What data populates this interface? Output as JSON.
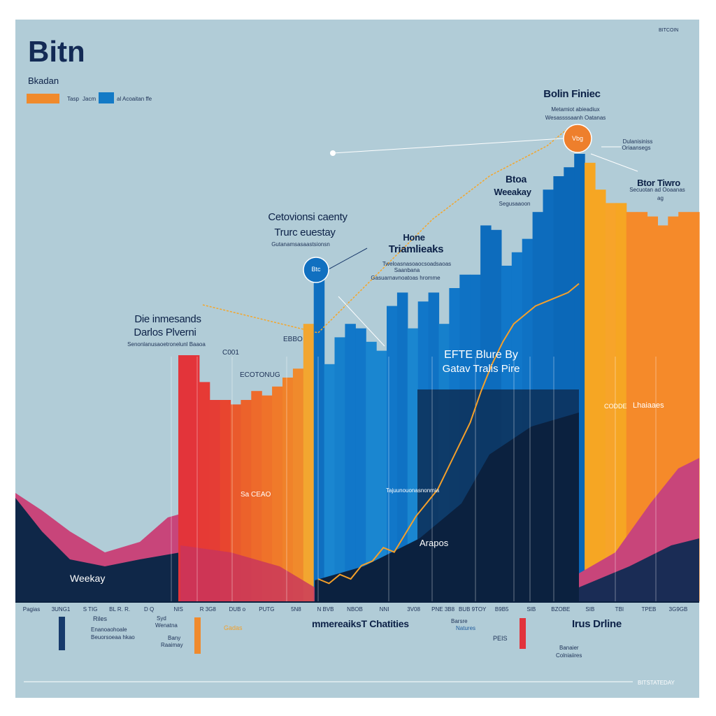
{
  "header": {
    "title": "Bitn",
    "subtitle": "Bkadan",
    "corner_text": "BITCOIN",
    "footer_text": "BITSTATEDAY"
  },
  "legend": [
    {
      "label": "Tasp",
      "label2": "Jacm",
      "color": "#f08a2c"
    },
    {
      "label": "al Acoaitan ffe",
      "color": "#137ac6"
    }
  ],
  "annotations": {
    "peak_title": "Bolin Finiec",
    "peak_sub1": "Metamiot abieadiux",
    "peak_sub2": "Wesassssaanh Oatanas",
    "peak_marker": "Vbg",
    "peak_side1": "Dulanisiniss",
    "peak_side2": "Oriaansegs",
    "btc_marker": "Btc",
    "left_title1": "Cetovionsi caenty",
    "left_title2": "Trurc euestay",
    "left_sub": "Gutanamsasaastsionsn",
    "mid_title1": "Hone",
    "mid_title2": "Triamlieaks",
    "mid_sub1": "Tweloasnasoaocsoadsaoas",
    "mid_sub2": "Saanbana",
    "mid_sub3": "Gasuarnavnoatoas hromme",
    "weekly_title1": "Btoa",
    "weekly_title2": "Weeakay",
    "weekly_sub": "Segusaaoon",
    "right_title": "Btor Tiwro",
    "right_sub": "Secuotan ad Ooaanas",
    "right_tag": "ag",
    "diff_title1": "Die inmesands",
    "diff_title2": "Darlos Plverni",
    "diff_sub": "Senonlanusaoetronelunl Baaoa",
    "label_c001": "C001",
    "label_eb": "EBBO",
    "label_econ": "ECOTONUG",
    "blue_title1": "EFTE Blure By",
    "blue_title2": "Gatav Tralis Pire",
    "orange_label": "Sa CEAO",
    "dark_label": "Tajuunouonasnonmia",
    "apos_label": "Arapos",
    "weekly_bottom": "Weekay",
    "line_end1": "CODDE",
    "line_end2": "Lhaiaaes"
  },
  "bottom": {
    "ticks": [
      "Pagias",
      "3UNG1",
      "S TIG",
      "BL R. R.",
      "D Q",
      "NIS",
      "R 3G8",
      "DUB o",
      "PUTG",
      "5N8",
      "N BVB",
      "NBOB",
      "NNI",
      "3V08",
      "PNE 3B8",
      "BUB 9TOY",
      "B9B5",
      "SIB",
      "BZOBE",
      "SIB",
      "TBI",
      "TPEB",
      "3G9GB"
    ],
    "title": "mmereaiksT Chatities",
    "right_title": "Irus Drline",
    "notes": [
      "Riles",
      "Enanoaohoale",
      "Beuorsoeaa hkao",
      "Syd",
      "Wenatna",
      "Bany",
      "Raaimay",
      "Gadas",
      "Barsre",
      "Natures",
      "PEIS",
      "Banaier",
      "Colniaiires"
    ],
    "tag_colors": [
      "#173a6b",
      "#f08a2c",
      "#e2333b"
    ]
  },
  "chart_data": {
    "type": "bar",
    "title": "Bitn",
    "xlabel": "mmereaiksT Chatities",
    "ylabel": "",
    "ylim": [
      0,
      100
    ],
    "grid": false,
    "legend_position": "top-left",
    "values": [
      55,
      55,
      49,
      45,
      45,
      44,
      45,
      47,
      46,
      48,
      50,
      52,
      62,
      72,
      53,
      59,
      62,
      61,
      58,
      56,
      66,
      69,
      61,
      67,
      69,
      62,
      70,
      73,
      73,
      84,
      83,
      75,
      78,
      81,
      87,
      92,
      95,
      97,
      100,
      98,
      92,
      89,
      89,
      87,
      87,
      86,
      84,
      86,
      87,
      87
    ],
    "bar_colors": [
      "#e3343a",
      "#e3343a",
      "#e63a35",
      "#e53d35",
      "#e8452f",
      "#ea5a2c",
      "#ec622b",
      "#ee6a2b",
      "#ef722a",
      "#f07a2a",
      "#f0822a",
      "#f08a2c",
      "#f2a630",
      "#0f6fc0",
      "#1a86d0",
      "#1680cc",
      "#1177c9",
      "#1177c9",
      "#1a86d0",
      "#1a86d0",
      "#1177c9",
      "#0f72c4",
      "#1a86d0",
      "#1177c9",
      "#0f72c4",
      "#1680cc",
      "#1177c9",
      "#0f72c4",
      "#0f72c4",
      "#0d6cbd",
      "#0d6cbd",
      "#1177c9",
      "#1177c9",
      "#0f72c4",
      "#0d6cbd",
      "#0d6cbd",
      "#0b68b8",
      "#0b68b8",
      "#0b68b8",
      "#f6a623",
      "#f6a623",
      "#f7a42a",
      "#f6a623",
      "#f58a2a",
      "#f58a2a",
      "#f58a2a",
      "#f58a2a",
      "#f58a2a",
      "#f58a2a",
      "#f58a2a"
    ],
    "price_line": [
      5,
      4,
      6,
      5,
      8,
      9,
      12,
      11,
      15,
      19,
      22,
      25,
      30,
      35,
      40,
      47,
      53,
      58,
      62,
      64,
      66,
      67,
      68,
      69,
      71
    ],
    "trend_line": [
      60,
      64,
      68,
      72,
      76,
      80,
      84,
      87,
      90,
      93,
      95,
      97,
      99,
      100
    ]
  }
}
